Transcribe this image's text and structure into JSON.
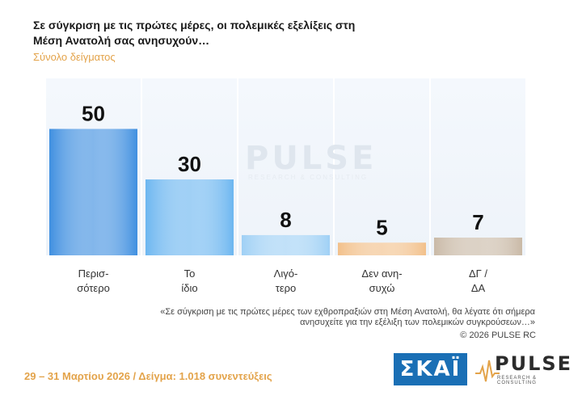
{
  "header": {
    "title": "Σε σύγκριση με τις πρώτες μέρες, οι πολεμικές εξελίξεις στη Μέση Ανατολή σας ανησυχούν…",
    "subtitle": "Σύνολο δείγματος"
  },
  "chart_data": {
    "type": "bar",
    "categories": [
      [
        "Περισ-",
        "σότερο"
      ],
      [
        "Το",
        "ίδιο"
      ],
      [
        "Λιγό-",
        "τερο"
      ],
      [
        "Δεν ανη-",
        "συχώ"
      ],
      [
        "ΔΓ /",
        "ΔΑ"
      ]
    ],
    "values": [
      50,
      30,
      8,
      5,
      7
    ],
    "colors": [
      "#3f8fe0",
      "#6cb6f0",
      "#9fd0f5",
      "#f2c08a",
      "#c9b9a6"
    ],
    "ylim": [
      0,
      70
    ],
    "grid": false
  },
  "watermark": {
    "word": "PULSE",
    "tagline": "RESEARCH & CONSULTING"
  },
  "note": {
    "text": "«Σε σύγκριση με τις πρώτες μέρες των εχθροπραξιών στη Μέση Ανατολή, θα λέγατε ότι σήμερα ανησυχείτε για την εξέλιξη των πολεμικών συγκρούσεων…»",
    "copyright": "©  2026  PULSE RC"
  },
  "footer": {
    "text": "29 – 31  Μαρτίου 2026  /  Δείγμα:  1.018 συνεντεύξεις"
  },
  "logos": {
    "skai": "ΣΚΑΪ",
    "pulse": "PULSE",
    "pulse_tagline": "RESEARCH & CONSULTING"
  }
}
